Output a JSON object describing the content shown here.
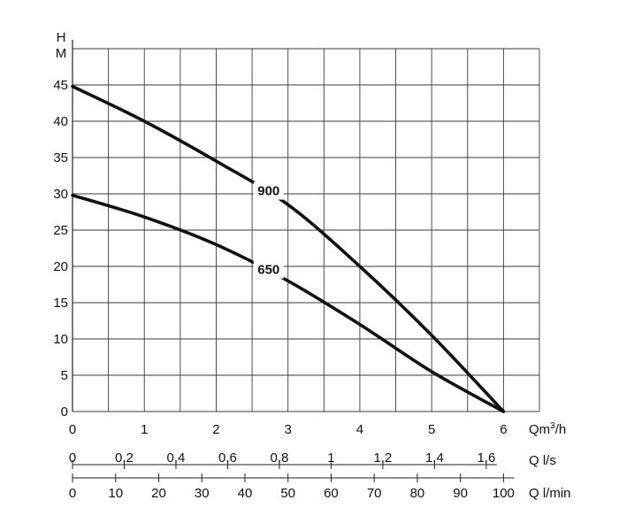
{
  "chart_data": {
    "type": "line",
    "title": "",
    "ylabel": {
      "line1": "H",
      "line2": "M"
    },
    "ylim": [
      0,
      50
    ],
    "y_ticks": [
      "0",
      "5",
      "10",
      "15",
      "20",
      "25",
      "30",
      "35",
      "40",
      "45"
    ],
    "y_tick_values": [
      0,
      5,
      10,
      15,
      20,
      25,
      30,
      35,
      40,
      45
    ],
    "grid": true,
    "x_axes": [
      {
        "unit": "Qm³/h",
        "unit_base": "Qm",
        "unit_sup": "3",
        "unit_tail": "/h",
        "ticks": [
          "0",
          "1",
          "2",
          "3",
          "4",
          "5",
          "6"
        ],
        "values": [
          0,
          1,
          2,
          3,
          4,
          5,
          6
        ]
      },
      {
        "unit": "Q l/s",
        "ticks": [
          "0",
          "0,2",
          "0,4",
          "0,6",
          "0,8",
          "1",
          "1,2",
          "1,4",
          "1,6"
        ],
        "values": [
          0,
          0.2,
          0.4,
          0.6,
          0.8,
          1.0,
          1.2,
          1.4,
          1.6
        ]
      },
      {
        "unit": "Q l/min",
        "ticks": [
          "0",
          "10",
          "20",
          "30",
          "40",
          "50",
          "60",
          "70",
          "80",
          "90",
          "100"
        ],
        "values": [
          0,
          10,
          20,
          30,
          40,
          50,
          60,
          70,
          80,
          90,
          100
        ]
      }
    ],
    "xlim": [
      0,
      6.5
    ],
    "series": [
      {
        "name": "900",
        "points": [
          [
            0,
            44.8
          ],
          [
            1,
            40.0
          ],
          [
            2,
            34.5
          ],
          [
            3,
            28.5
          ],
          [
            4,
            20.0
          ],
          [
            5,
            10.5
          ],
          [
            6,
            0
          ]
        ]
      },
      {
        "name": "650",
        "points": [
          [
            0,
            29.8
          ],
          [
            1,
            26.8
          ],
          [
            2,
            23.0
          ],
          [
            3,
            18.0
          ],
          [
            4,
            12.0
          ],
          [
            5,
            5.5
          ],
          [
            6,
            0
          ]
        ]
      }
    ]
  }
}
